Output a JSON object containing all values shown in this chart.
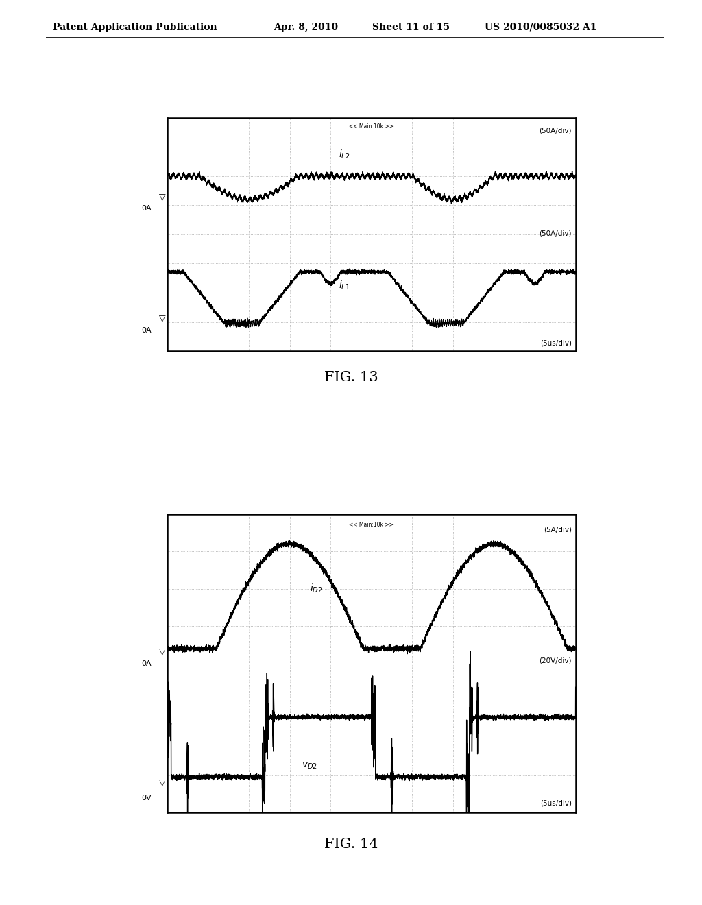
{
  "bg_color": "#ffffff",
  "osc_bg": "#ffffff",
  "header_left": "Patent Application Publication",
  "header_mid1": "Apr. 8, 2010",
  "header_mid2": "Sheet 11 of 15",
  "header_right": "US 2010/0085032 A1",
  "osc_header": "<< Main:10k >>",
  "fig13_label_top": "(50A/div)",
  "fig13_label_bot": "(50A/div)",
  "fig13_time": "(5us/div)",
  "fig13_ch1": "i_{L2}",
  "fig13_ch2": "i_{L1}",
  "fig13_0A_1": "0A",
  "fig13_0A_2": "0A",
  "fig13_caption": "FIG. 13",
  "fig14_label_top": "(5A/div)",
  "fig14_label_bot": "(20V/div)",
  "fig14_time": "(5us/div)",
  "fig14_ch1": "i_{D2}",
  "fig14_ch2": "v_{D2}",
  "fig14_0A": "0A",
  "fig14_0V": "0V",
  "fig14_caption": "FIG. 14",
  "grid_color": "#aaaaaa",
  "line_color": "#000000"
}
